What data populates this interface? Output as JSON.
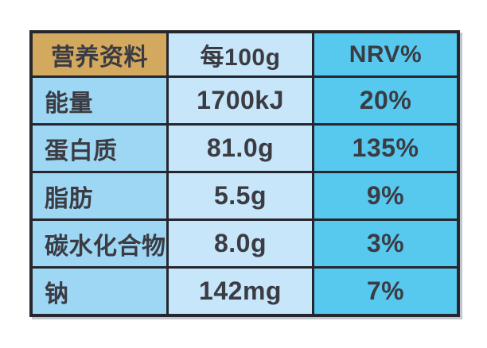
{
  "chart_data": {
    "type": "table",
    "title": "营养资料",
    "columns": [
      "营养资料",
      "每100g",
      "NRV%"
    ],
    "rows": [
      [
        "能量",
        "1700kJ",
        "20%"
      ],
      [
        "蛋白质",
        "81.0g",
        "135%"
      ],
      [
        "脂肪",
        "5.5g",
        "9%"
      ],
      [
        "碳水化合物",
        "8.0g",
        "3%"
      ],
      [
        "钠",
        "142mg",
        "7%"
      ]
    ],
    "layout_hints": {
      "header_position": "top-row",
      "nutrient_column_align": "left",
      "value_columns_align": "center",
      "grid": "on"
    },
    "colors": {
      "header_bg": "#d3a95f",
      "nutrient_col_bg": "#9ed7f3",
      "per100g_col_bg": "#c7e6f9",
      "nrv_col_bg": "#57c9ef",
      "gridline": "#26262e",
      "text": "#3b3b43",
      "page_bg": "#ffffff"
    }
  }
}
